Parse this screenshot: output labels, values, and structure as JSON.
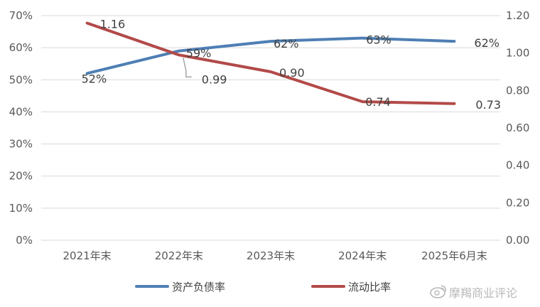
{
  "chart_data": {
    "type": "line",
    "categories": [
      "2021年末",
      "2022年末",
      "2023年末",
      "2024年末",
      "2025年6月末"
    ],
    "series": [
      {
        "name": "资产负债率",
        "axis": "left",
        "color": "#4e7fb4",
        "values": [
          52,
          59,
          62,
          63,
          62
        ],
        "labels": [
          "52%",
          "59%",
          "62%",
          "63%",
          "62%"
        ]
      },
      {
        "name": "流动比率",
        "axis": "right",
        "color": "#b24a49",
        "values": [
          1.16,
          0.99,
          0.9,
          0.74,
          0.73
        ],
        "labels": [
          "1.16",
          "0.99",
          "0.90",
          "0.74",
          "0.73"
        ]
      }
    ],
    "y_left": {
      "min": 0,
      "max": 70,
      "ticks": [
        0,
        10,
        20,
        30,
        40,
        50,
        60,
        70
      ],
      "tick_labels": [
        "0%",
        "10%",
        "20%",
        "30%",
        "40%",
        "50%",
        "60%",
        "70%"
      ]
    },
    "y_right": {
      "min": 0,
      "max": 1.2,
      "ticks": [
        0,
        0.2,
        0.4,
        0.6,
        0.8,
        1.0,
        1.2
      ],
      "tick_labels": [
        "0.00",
        "0.20",
        "0.40",
        "0.60",
        "0.80",
        "1.00",
        "1.20"
      ]
    },
    "grid": true,
    "legend": "bottom",
    "title": "",
    "xlabel": "",
    "ylabel": ""
  },
  "watermark": {
    "text": "摩羯商业评论",
    "icon": "weibo-icon"
  },
  "colors": {
    "grid": "#d9d9d9",
    "text": "#595959"
  }
}
